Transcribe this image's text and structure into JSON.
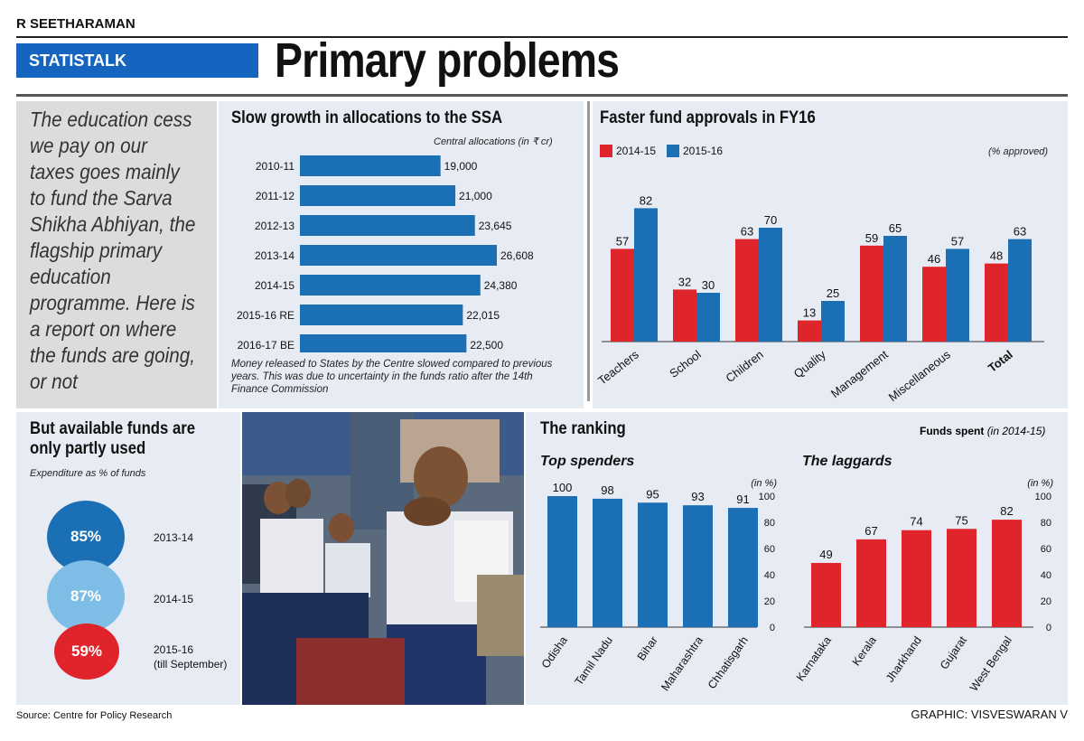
{
  "header": {
    "author": "R SEETHARAMAN",
    "section": "STATISTALK",
    "title": "Primary problems"
  },
  "intro": {
    "text": "The education cess we pay on our taxes goes mainly to fund the Sarva Shikha Abhiyan, the flagship primary education programme. Here is a report on where the funds are going, or not"
  },
  "footer": {
    "source": "Source: Centre for Policy Research",
    "credit": "GRAPHIC: VISVESWARAN V"
  },
  "colors": {
    "blue": "#1a6fb5",
    "red": "#e0242b",
    "light_blue": "#7dbde6",
    "dark_blue": "#1565c0",
    "panel_bg": "#e7ecf4"
  },
  "chart_data": [
    {
      "id": "allocations",
      "type": "bar",
      "orientation": "horizontal",
      "title": "Slow growth in allocations to the SSA",
      "unit_label": "Central allocations (in ₹ cr)",
      "categories": [
        "2010-11",
        "2011-12",
        "2012-13",
        "2013-14",
        "2014-15",
        "2015-16 RE",
        "2016-17 BE"
      ],
      "values": [
        19000,
        21000,
        23645,
        26608,
        24380,
        22015,
        22500
      ],
      "value_labels": [
        "19,000",
        "21,000",
        "23,645",
        "26,608",
        "24,380",
        "22,015",
        "22,500"
      ],
      "note": "Money released to States by the Centre slowed compared to previous years. This was due to uncertainty in the funds ratio after the 14th Finance Commission"
    },
    {
      "id": "approvals",
      "type": "bar",
      "title": "Faster fund approvals in FY16",
      "unit_label": "(% approved)",
      "categories": [
        "Teachers",
        "School",
        "Children",
        "Quality",
        "Management",
        "Miscellaneous",
        "Total"
      ],
      "series": [
        {
          "name": "2014-15",
          "color": "#e0242b",
          "values": [
            57,
            32,
            63,
            13,
            59,
            46,
            48
          ]
        },
        {
          "name": "2015-16",
          "color": "#1a6fb5",
          "values": [
            82,
            30,
            70,
            25,
            65,
            57,
            63
          ]
        }
      ],
      "ylim": [
        0,
        100
      ]
    },
    {
      "id": "utilisation",
      "type": "pie",
      "title": "But available funds are only partly used",
      "subtitle": "Expenditure as % of funds",
      "items": [
        {
          "label": "85%",
          "year": "2013-14",
          "year_note": "",
          "value": 85,
          "color": "#1a6fb5"
        },
        {
          "label": "87%",
          "year": "2014-15",
          "year_note": "",
          "value": 87,
          "color": "#7dbde6"
        },
        {
          "label": "59%",
          "year": "2015-16",
          "year_note": "(till September)",
          "value": 59,
          "color": "#e0242b"
        }
      ]
    },
    {
      "id": "top_spenders",
      "type": "bar",
      "title": "The ranking",
      "right_note_bold": "Funds spent",
      "right_note_ital": "(in 2014-15)",
      "subtitle": "Top spenders",
      "unit_label": "(in %)",
      "categories": [
        "Odisha",
        "Tamil Nadu",
        "Bihar",
        "Maharashtra",
        "Chhatisgarh"
      ],
      "values": [
        100,
        98,
        95,
        93,
        91
      ],
      "ylim": [
        0,
        100
      ],
      "yticks": [
        0,
        20,
        40,
        60,
        80,
        100
      ],
      "color": "#1a6fb5"
    },
    {
      "id": "laggards",
      "type": "bar",
      "subtitle": "The laggards",
      "unit_label": "(in %)",
      "categories": [
        "Karnataka",
        "Kerala",
        "Jharkhand",
        "Gujarat",
        "West Bengal"
      ],
      "values": [
        49,
        67,
        74,
        75,
        82
      ],
      "ylim": [
        0,
        100
      ],
      "yticks": [
        0,
        20,
        40,
        60,
        80,
        100
      ],
      "color": "#e0242b"
    }
  ]
}
